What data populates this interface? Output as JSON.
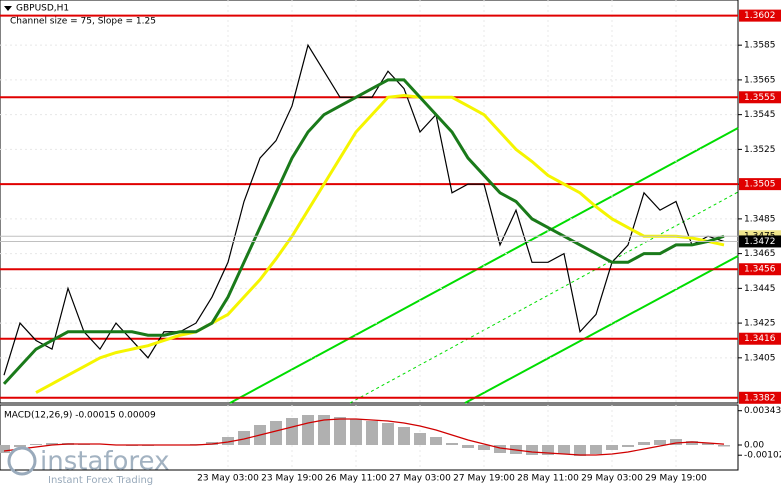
{
  "chart_data": [
    {
      "type": "line",
      "title": "GBPUSD,H1",
      "subtitle": "Channel size = 75, Slope = 1.25",
      "categories": [
        null,
        null,
        null,
        null,
        null,
        null,
        null,
        null,
        null,
        null,
        null,
        null,
        null,
        null,
        "23 May 03:00",
        null,
        null,
        null,
        "23 May 19:00",
        null,
        null,
        null,
        "26 May 11:00",
        null,
        null,
        null,
        "27 May 03:00",
        null,
        null,
        null,
        "27 May 19:00",
        null,
        null,
        null,
        "28 May 11:00",
        null,
        null,
        null,
        "29 May 03:00",
        null,
        null,
        null,
        "29 May 19:00",
        null,
        null,
        null
      ],
      "series": [
        {
          "name": "GBPUSD",
          "color": "#000000",
          "values": [
            1.3395,
            1.3425,
            1.3415,
            1.341,
            1.3445,
            1.342,
            1.341,
            1.3425,
            1.3415,
            1.3405,
            1.342,
            1.342,
            1.3425,
            1.344,
            1.346,
            1.3495,
            1.352,
            1.353,
            1.355,
            1.3585,
            1.357,
            1.3555,
            1.3555,
            1.3555,
            1.357,
            1.356,
            1.3535,
            1.3545,
            1.35,
            1.3505,
            1.3505,
            1.347,
            1.349,
            1.346,
            1.346,
            1.3465,
            1.342,
            1.343,
            1.346,
            1.347,
            1.35,
            1.349,
            1.3495,
            1.347,
            1.3475,
            1.3472
          ]
        },
        {
          "name": "MA slow",
          "color": "#f5f500",
          "values": [
            null,
            null,
            1.3385,
            1.339,
            1.3395,
            1.34,
            1.3405,
            1.3408,
            1.341,
            1.3412,
            1.3415,
            1.3418,
            1.342,
            1.3425,
            1.343,
            1.344,
            1.345,
            1.3462,
            1.3475,
            1.349,
            1.3505,
            1.352,
            1.3535,
            1.3545,
            1.3555,
            1.3556,
            1.3555,
            1.3555,
            1.3555,
            1.355,
            1.3545,
            1.3535,
            1.3525,
            1.3518,
            1.351,
            1.3505,
            1.35,
            1.3492,
            1.3485,
            1.348,
            1.3475,
            1.3475,
            1.3475,
            1.3474,
            1.3472,
            1.347
          ]
        },
        {
          "name": "MA fast",
          "color": "#1a7a1a",
          "values": [
            1.339,
            1.34,
            1.341,
            1.3415,
            1.342,
            1.342,
            1.342,
            1.342,
            1.342,
            1.3418,
            1.3418,
            1.342,
            1.342,
            1.3425,
            1.344,
            1.346,
            1.348,
            1.35,
            1.352,
            1.3535,
            1.3545,
            1.355,
            1.3555,
            1.356,
            1.3565,
            1.3565,
            1.3555,
            1.3545,
            1.3535,
            1.352,
            1.351,
            1.35,
            1.3495,
            1.3485,
            1.348,
            1.3475,
            1.347,
            1.3465,
            1.346,
            1.346,
            1.3465,
            1.3465,
            1.347,
            1.347,
            1.3472,
            1.3475
          ]
        }
      ],
      "ylim": [
        1.3379,
        1.3611
      ],
      "yticks": [
        1.3585,
        1.3565,
        1.3545,
        1.3525,
        1.3505,
        1.3485,
        1.3465,
        1.3445,
        1.3425,
        1.3405
      ],
      "levels": [
        1.3602,
        1.3555,
        1.3505,
        1.3456,
        1.3416,
        1.3382
      ],
      "level_color": "#e00000",
      "price_tags": [
        {
          "value": 1.3475,
          "label": "1.3475",
          "color": "#f0e68c"
        },
        {
          "value": 1.3472,
          "label": "1.3472",
          "color": "#000000"
        }
      ],
      "grid": true
    },
    {
      "type": "macd",
      "title": "MACD(12,26,9) -0.00015 0.00009",
      "series": [
        {
          "name": "MACD",
          "color": "#b0b0b0",
          "values": [
            -0.0008,
            -0.0002,
            0.0001,
            0.0002,
            0.0002,
            0.0001,
            0,
            0,
            -0.0001,
            -0.0001,
            0,
            0,
            0.0001,
            0.0003,
            0.0008,
            0.0014,
            0.002,
            0.0024,
            0.0027,
            0.003,
            0.003,
            0.0028,
            0.0026,
            0.0024,
            0.0022,
            0.0018,
            0.0012,
            0.0008,
            0.0002,
            -0.0003,
            -0.0005,
            -0.0008,
            -0.0009,
            -0.001,
            -0.001,
            -0.0009,
            -0.0011,
            -0.0009,
            -0.0005,
            -0.0002,
            0.0003,
            0.0005,
            0.0006,
            0.0004,
            0.0002,
            -0.00015
          ]
        },
        {
          "name": "Signal",
          "color": "#d00000",
          "values": [
            -0.0006,
            -0.0004,
            -0.0002,
            0,
            0.0001,
            0.0001,
            0.0001,
            0,
            0,
            0,
            0,
            0,
            0,
            0.0001,
            0.0003,
            0.0006,
            0.001,
            0.0014,
            0.0018,
            0.0022,
            0.0025,
            0.0026,
            0.0026,
            0.0025,
            0.0024,
            0.0022,
            0.0019,
            0.0015,
            0.001,
            0.0005,
            0.0001,
            -0.0003,
            -0.0005,
            -0.0007,
            -0.0008,
            -0.0009,
            -0.001,
            -0.001,
            -0.0009,
            -0.0007,
            -0.0004,
            -0.0001,
            0.0002,
            0.0003,
            0.0002,
            9e-05
          ]
        }
      ],
      "ylim": [
        -0.0025,
        0.004
      ],
      "yticks": [
        0.00343,
        {
          "value": 0,
          "label": "0.00"
        },
        -0.00102
      ]
    }
  ],
  "watermark": {
    "name": "instaforex",
    "tagline": "Instant Forex Trading"
  }
}
